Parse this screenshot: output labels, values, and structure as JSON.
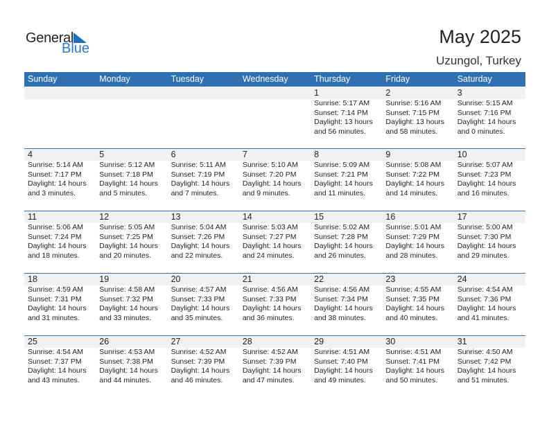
{
  "logo": {
    "general": "General",
    "blue": "Blue"
  },
  "title": "May 2025",
  "location": "Uzungol, Turkey",
  "weekdays": [
    "Sunday",
    "Monday",
    "Tuesday",
    "Wednesday",
    "Thursday",
    "Friday",
    "Saturday"
  ],
  "accent": "#2e70b2",
  "first_weekday_index": 4,
  "days": [
    {
      "d": "1",
      "rise": "Sunrise: 5:17 AM",
      "set": "Sunset: 7:14 PM",
      "dl1": "Daylight: 13 hours",
      "dl2": "and 56 minutes."
    },
    {
      "d": "2",
      "rise": "Sunrise: 5:16 AM",
      "set": "Sunset: 7:15 PM",
      "dl1": "Daylight: 13 hours",
      "dl2": "and 58 minutes."
    },
    {
      "d": "3",
      "rise": "Sunrise: 5:15 AM",
      "set": "Sunset: 7:16 PM",
      "dl1": "Daylight: 14 hours",
      "dl2": "and 0 minutes."
    },
    {
      "d": "4",
      "rise": "Sunrise: 5:14 AM",
      "set": "Sunset: 7:17 PM",
      "dl1": "Daylight: 14 hours",
      "dl2": "and 3 minutes."
    },
    {
      "d": "5",
      "rise": "Sunrise: 5:12 AM",
      "set": "Sunset: 7:18 PM",
      "dl1": "Daylight: 14 hours",
      "dl2": "and 5 minutes."
    },
    {
      "d": "6",
      "rise": "Sunrise: 5:11 AM",
      "set": "Sunset: 7:19 PM",
      "dl1": "Daylight: 14 hours",
      "dl2": "and 7 minutes."
    },
    {
      "d": "7",
      "rise": "Sunrise: 5:10 AM",
      "set": "Sunset: 7:20 PM",
      "dl1": "Daylight: 14 hours",
      "dl2": "and 9 minutes."
    },
    {
      "d": "8",
      "rise": "Sunrise: 5:09 AM",
      "set": "Sunset: 7:21 PM",
      "dl1": "Daylight: 14 hours",
      "dl2": "and 11 minutes."
    },
    {
      "d": "9",
      "rise": "Sunrise: 5:08 AM",
      "set": "Sunset: 7:22 PM",
      "dl1": "Daylight: 14 hours",
      "dl2": "and 14 minutes."
    },
    {
      "d": "10",
      "rise": "Sunrise: 5:07 AM",
      "set": "Sunset: 7:23 PM",
      "dl1": "Daylight: 14 hours",
      "dl2": "and 16 minutes."
    },
    {
      "d": "11",
      "rise": "Sunrise: 5:06 AM",
      "set": "Sunset: 7:24 PM",
      "dl1": "Daylight: 14 hours",
      "dl2": "and 18 minutes."
    },
    {
      "d": "12",
      "rise": "Sunrise: 5:05 AM",
      "set": "Sunset: 7:25 PM",
      "dl1": "Daylight: 14 hours",
      "dl2": "and 20 minutes."
    },
    {
      "d": "13",
      "rise": "Sunrise: 5:04 AM",
      "set": "Sunset: 7:26 PM",
      "dl1": "Daylight: 14 hours",
      "dl2": "and 22 minutes."
    },
    {
      "d": "14",
      "rise": "Sunrise: 5:03 AM",
      "set": "Sunset: 7:27 PM",
      "dl1": "Daylight: 14 hours",
      "dl2": "and 24 minutes."
    },
    {
      "d": "15",
      "rise": "Sunrise: 5:02 AM",
      "set": "Sunset: 7:28 PM",
      "dl1": "Daylight: 14 hours",
      "dl2": "and 26 minutes."
    },
    {
      "d": "16",
      "rise": "Sunrise: 5:01 AM",
      "set": "Sunset: 7:29 PM",
      "dl1": "Daylight: 14 hours",
      "dl2": "and 28 minutes."
    },
    {
      "d": "17",
      "rise": "Sunrise: 5:00 AM",
      "set": "Sunset: 7:30 PM",
      "dl1": "Daylight: 14 hours",
      "dl2": "and 29 minutes."
    },
    {
      "d": "18",
      "rise": "Sunrise: 4:59 AM",
      "set": "Sunset: 7:31 PM",
      "dl1": "Daylight: 14 hours",
      "dl2": "and 31 minutes."
    },
    {
      "d": "19",
      "rise": "Sunrise: 4:58 AM",
      "set": "Sunset: 7:32 PM",
      "dl1": "Daylight: 14 hours",
      "dl2": "and 33 minutes."
    },
    {
      "d": "20",
      "rise": "Sunrise: 4:57 AM",
      "set": "Sunset: 7:33 PM",
      "dl1": "Daylight: 14 hours",
      "dl2": "and 35 minutes."
    },
    {
      "d": "21",
      "rise": "Sunrise: 4:56 AM",
      "set": "Sunset: 7:33 PM",
      "dl1": "Daylight: 14 hours",
      "dl2": "and 36 minutes."
    },
    {
      "d": "22",
      "rise": "Sunrise: 4:56 AM",
      "set": "Sunset: 7:34 PM",
      "dl1": "Daylight: 14 hours",
      "dl2": "and 38 minutes."
    },
    {
      "d": "23",
      "rise": "Sunrise: 4:55 AM",
      "set": "Sunset: 7:35 PM",
      "dl1": "Daylight: 14 hours",
      "dl2": "and 40 minutes."
    },
    {
      "d": "24",
      "rise": "Sunrise: 4:54 AM",
      "set": "Sunset: 7:36 PM",
      "dl1": "Daylight: 14 hours",
      "dl2": "and 41 minutes."
    },
    {
      "d": "25",
      "rise": "Sunrise: 4:54 AM",
      "set": "Sunset: 7:37 PM",
      "dl1": "Daylight: 14 hours",
      "dl2": "and 43 minutes."
    },
    {
      "d": "26",
      "rise": "Sunrise: 4:53 AM",
      "set": "Sunset: 7:38 PM",
      "dl1": "Daylight: 14 hours",
      "dl2": "and 44 minutes."
    },
    {
      "d": "27",
      "rise": "Sunrise: 4:52 AM",
      "set": "Sunset: 7:39 PM",
      "dl1": "Daylight: 14 hours",
      "dl2": "and 46 minutes."
    },
    {
      "d": "28",
      "rise": "Sunrise: 4:52 AM",
      "set": "Sunset: 7:39 PM",
      "dl1": "Daylight: 14 hours",
      "dl2": "and 47 minutes."
    },
    {
      "d": "29",
      "rise": "Sunrise: 4:51 AM",
      "set": "Sunset: 7:40 PM",
      "dl1": "Daylight: 14 hours",
      "dl2": "and 49 minutes."
    },
    {
      "d": "30",
      "rise": "Sunrise: 4:51 AM",
      "set": "Sunset: 7:41 PM",
      "dl1": "Daylight: 14 hours",
      "dl2": "and 50 minutes."
    },
    {
      "d": "31",
      "rise": "Sunrise: 4:50 AM",
      "set": "Sunset: 7:42 PM",
      "dl1": "Daylight: 14 hours",
      "dl2": "and 51 minutes."
    }
  ]
}
